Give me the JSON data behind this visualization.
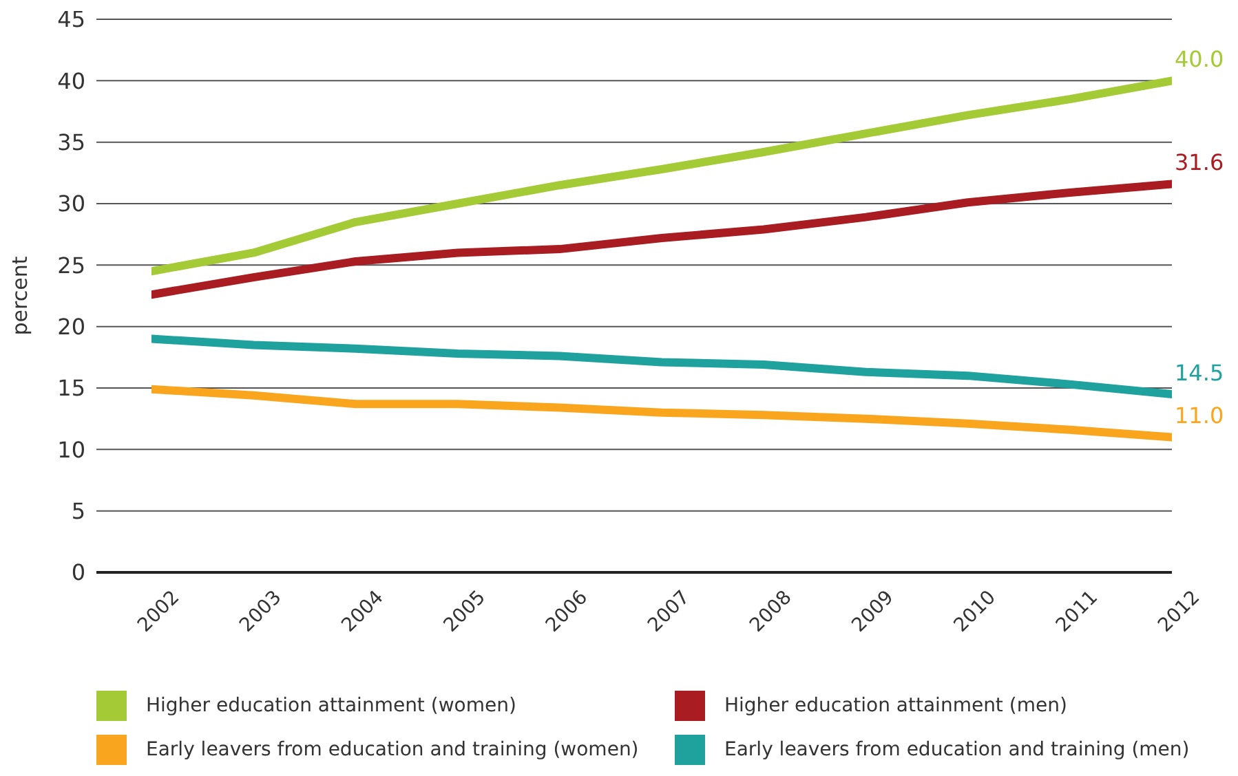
{
  "chart_data": {
    "type": "line",
    "ylabel": "percent",
    "categories": [
      "2002",
      "2003",
      "2004",
      "2005",
      "2006",
      "2007",
      "2008",
      "2009",
      "2010",
      "2011",
      "2012"
    ],
    "ylim": [
      0,
      45
    ],
    "yticks": [
      0,
      5,
      10,
      15,
      20,
      25,
      30,
      35,
      40,
      45
    ],
    "grid": "y",
    "legend": "bottom",
    "marker": "none",
    "line_style": "solid",
    "series": [
      {
        "name": "Higher education attainment (women)",
        "color": "#a4cb36",
        "values": [
          24.5,
          26,
          28.5,
          30,
          31.5,
          32.8,
          34.2,
          35.7,
          37.2,
          38.5,
          40.0
        ],
        "value_labels": [
          null,
          null,
          null,
          null,
          null,
          null,
          null,
          null,
          null,
          null,
          "40.0"
        ]
      },
      {
        "name": "Higher education attainment (men)",
        "color": "#a81c22",
        "values": [
          22.6,
          24,
          25.3,
          26,
          26.3,
          27.2,
          27.9,
          28.9,
          30.1,
          30.9,
          31.6
        ],
        "value_labels": [
          null,
          null,
          null,
          null,
          null,
          null,
          null,
          null,
          null,
          null,
          "31.6"
        ]
      },
      {
        "name": "Early leavers from education and training (women)",
        "color": "#f9a51d",
        "values": [
          14.9,
          14.4,
          13.7,
          13.7,
          13.4,
          13.0,
          12.8,
          12.5,
          12.1,
          11.6,
          11.0
        ],
        "value_labels": [
          null,
          null,
          null,
          null,
          null,
          null,
          null,
          null,
          null,
          null,
          "11.0"
        ]
      },
      {
        "name": "Early leavers from education and training (men)",
        "color": "#1fa19e",
        "values": [
          19.0,
          18.5,
          18.2,
          17.8,
          17.6,
          17.1,
          16.9,
          16.3,
          16.0,
          15.3,
          14.5
        ],
        "value_labels": [
          null,
          null,
          null,
          null,
          null,
          null,
          null,
          null,
          null,
          null,
          "14.5"
        ]
      }
    ]
  }
}
